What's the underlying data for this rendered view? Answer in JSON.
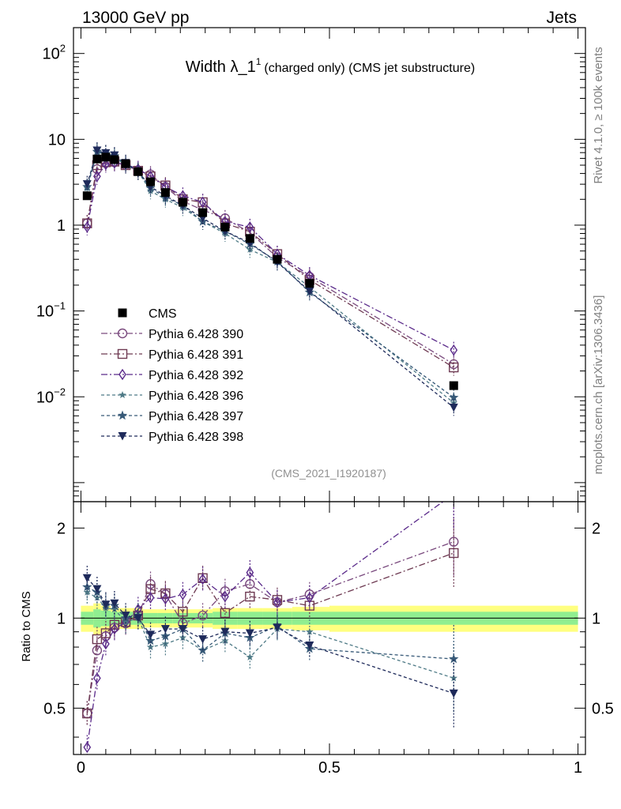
{
  "header": {
    "left": "13000 GeV pp",
    "right": "Jets"
  },
  "title": {
    "main": "Width λ_1",
    "sup": "1",
    "sub": "(charged only) (CMS jet substructure)"
  },
  "side_labels": {
    "rivet": "Rivet 4.1.0, ≥ 100k events",
    "mcplots": "mcplots.cern.ch [arXiv:1306.3436]"
  },
  "analysis_id": "(CMS_2021_I1920187)",
  "ratio_ylabel": "Ratio to CMS",
  "colors": {
    "data": "#000000",
    "s390": "#7a4a7e",
    "s391": "#6e3a52",
    "s392": "#5a2a8a",
    "s396": "#4e7a86",
    "s397": "#385a78",
    "s398": "#1e2a5a",
    "band_outer": "#ffff80",
    "band_inner": "#90ee90"
  },
  "chart_data": [
    {
      "type": "line",
      "yscale": "log",
      "xlim": [
        -0.015,
        1.015
      ],
      "ylim": [
        0.0006,
        200
      ],
      "yticks": [
        {
          "value": 0.01,
          "base": "10",
          "exp": "−2"
        },
        {
          "value": 0.1,
          "base": "10",
          "exp": "−1"
        },
        {
          "value": 1,
          "base": "1",
          "exp": ""
        },
        {
          "value": 10,
          "base": "10",
          "exp": ""
        },
        {
          "value": 100,
          "base": "10",
          "exp": "2"
        }
      ],
      "x": [
        0.0125,
        0.0325,
        0.05,
        0.0675,
        0.09,
        0.115,
        0.14,
        0.17,
        0.205,
        0.245,
        0.29,
        0.34,
        0.395,
        0.46,
        0.75
      ],
      "data": {
        "name": "CMS",
        "values": [
          2.2,
          5.9,
          6.2,
          5.8,
          5.2,
          4.2,
          3.2,
          2.4,
          1.85,
          1.4,
          0.95,
          0.7,
          0.4,
          0.21,
          0.0135
        ]
      },
      "series": [
        {
          "name": "Pythia 6.428 390",
          "marker": "circle",
          "dash": "8,3,2,3",
          "color_key": "s390",
          "values": [
            1.05,
            4.5,
            5.3,
            5.4,
            5.0,
            4.3,
            3.9,
            2.8,
            1.9,
            1.5,
            1.2,
            0.82,
            0.42,
            0.25,
            0.024
          ]
        },
        {
          "name": "Pythia 6.428 391",
          "marker": "square",
          "dash": "8,3,2,3",
          "color_key": "s391",
          "values": [
            1.05,
            5.0,
            5.4,
            5.5,
            5.0,
            4.3,
            3.7,
            2.9,
            2.0,
            1.85,
            1.05,
            0.84,
            0.46,
            0.23,
            0.022
          ]
        },
        {
          "name": "Pythia 6.428 392",
          "marker": "diamond",
          "dash": "8,3,2,3",
          "color_key": "s392",
          "values": [
            0.95,
            3.7,
            5.1,
            5.3,
            5.1,
            4.5,
            3.7,
            2.8,
            2.2,
            1.85,
            1.1,
            0.95,
            0.46,
            0.26,
            0.035
          ]
        },
        {
          "name": "Pythia 6.428 396",
          "marker": "star-small",
          "dash": "4,3",
          "color_key": "s396",
          "values": [
            2.7,
            7.0,
            6.8,
            6.2,
            5.0,
            4.2,
            2.5,
            2.0,
            1.6,
            1.1,
            0.8,
            0.52,
            0.37,
            0.19,
            0.0085
          ]
        },
        {
          "name": "Pythia 6.428 397",
          "marker": "star",
          "dash": "4,3",
          "color_key": "s397",
          "values": [
            2.8,
            7.2,
            6.8,
            6.4,
            5.2,
            4.3,
            2.7,
            2.1,
            1.7,
            1.1,
            0.85,
            0.6,
            0.38,
            0.165,
            0.0098
          ]
        },
        {
          "name": "Pythia 6.428 398",
          "marker": "triangle-down",
          "dash": "4,3",
          "color_key": "s398",
          "values": [
            3.0,
            7.4,
            6.9,
            6.5,
            5.3,
            4.2,
            2.8,
            2.2,
            1.7,
            1.2,
            0.85,
            0.62,
            0.37,
            0.17,
            0.0075
          ]
        }
      ]
    },
    {
      "type": "line",
      "yscale": "log",
      "ylabel": "Ratio to CMS",
      "xlim": [
        -0.015,
        1.015
      ],
      "ylim": [
        0.35,
        2.45
      ],
      "yticks": [
        0.5,
        1,
        2
      ],
      "ytick_labels": [
        "0.5",
        "1",
        "2"
      ],
      "xticks": [
        0,
        0.5,
        1
      ],
      "xtick_labels": [
        "0",
        "0.5",
        "1"
      ],
      "band_edges": [
        0,
        0.025,
        0.04,
        0.06,
        0.075,
        0.105,
        0.125,
        0.155,
        0.185,
        0.225,
        0.265,
        0.315,
        0.365,
        0.425,
        0.5,
        1.0
      ],
      "band_outer": [
        0.1,
        0.12,
        0.1,
        0.08,
        0.08,
        0.08,
        0.07,
        0.07,
        0.07,
        0.07,
        0.08,
        0.08,
        0.08,
        0.09,
        0.1
      ],
      "band_inner": [
        0.05,
        0.07,
        0.06,
        0.05,
        0.05,
        0.05,
        0.04,
        0.04,
        0.04,
        0.04,
        0.05,
        0.05,
        0.05,
        0.05,
        0.05
      ],
      "x": [
        0.0125,
        0.0325,
        0.05,
        0.0675,
        0.09,
        0.115,
        0.14,
        0.17,
        0.205,
        0.245,
        0.29,
        0.34,
        0.395,
        0.46,
        0.75
      ],
      "series": [
        {
          "name": "Pythia 6.428 390",
          "values": [
            0.48,
            0.78,
            0.87,
            0.93,
            0.96,
            1.02,
            1.3,
            1.2,
            0.96,
            1.02,
            1.23,
            1.3,
            1.13,
            1.2,
            1.8
          ]
        },
        {
          "name": "Pythia 6.428 391",
          "values": [
            0.48,
            0.85,
            0.89,
            0.95,
            0.97,
            1.02,
            1.25,
            1.21,
            1.05,
            1.36,
            1.04,
            1.18,
            1.15,
            1.1,
            1.65
          ]
        },
        {
          "name": "Pythia 6.428 392",
          "values": [
            0.37,
            0.63,
            0.82,
            0.92,
            0.97,
            1.07,
            1.17,
            1.16,
            1.2,
            1.35,
            1.18,
            1.42,
            1.13,
            1.17,
            2.6
          ]
        },
        {
          "name": "Pythia 6.428 396",
          "values": [
            1.22,
            1.17,
            1.08,
            1.07,
            0.97,
            1.0,
            0.8,
            0.82,
            0.86,
            0.78,
            0.84,
            0.74,
            0.92,
            0.9,
            0.63
          ]
        },
        {
          "name": "Pythia 6.428 397",
          "values": [
            1.27,
            1.22,
            1.1,
            1.1,
            1.0,
            1.02,
            0.84,
            0.87,
            0.92,
            0.78,
            0.89,
            0.86,
            0.94,
            0.79,
            0.73
          ]
        },
        {
          "name": "Pythia 6.428 398",
          "values": [
            1.36,
            1.25,
            1.11,
            1.12,
            1.02,
            1.0,
            0.88,
            0.92,
            0.92,
            0.85,
            0.9,
            0.89,
            0.93,
            0.81,
            0.56
          ]
        }
      ]
    }
  ]
}
